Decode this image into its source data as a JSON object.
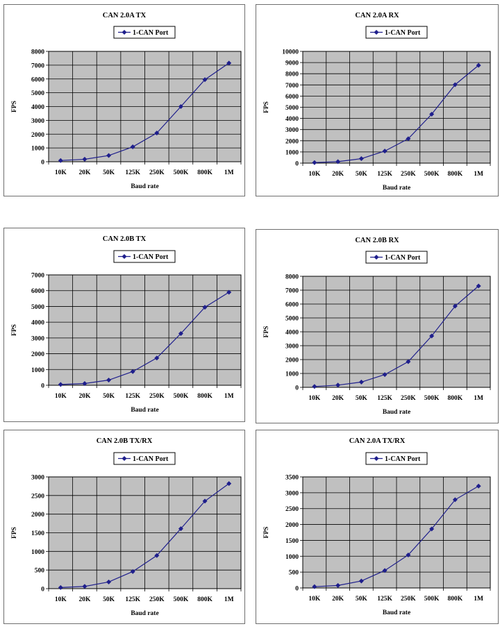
{
  "chart_data": [
    {
      "type": "line",
      "title": "CAN 2.0A TX",
      "xlabel": "Baud rate",
      "ylabel": "FPS",
      "categories": [
        "10K",
        "20K",
        "50K",
        "125K",
        "250K",
        "500K",
        "800K",
        "1M"
      ],
      "ylim": [
        0,
        8000
      ],
      "yticks": [
        0,
        1000,
        2000,
        3000,
        4000,
        5000,
        6000,
        7000,
        8000
      ],
      "grid": true,
      "legend_position": "top",
      "series": [
        {
          "name": "1-CAN Port",
          "color": "#1f1f8c",
          "values": [
            90,
            180,
            450,
            1080,
            2080,
            4000,
            5950,
            7150
          ]
        }
      ]
    },
    {
      "type": "line",
      "title": "CAN 2.0A RX",
      "xlabel": "Baud rate",
      "ylabel": "FPS",
      "categories": [
        "10K",
        "20K",
        "50K",
        "125K",
        "250K",
        "500K",
        "800K",
        "1M"
      ],
      "ylim": [
        0,
        10000
      ],
      "yticks": [
        0,
        1000,
        2000,
        3000,
        4000,
        5000,
        6000,
        7000,
        8000,
        9000,
        10000
      ],
      "grid": true,
      "legend_position": "top",
      "series": [
        {
          "name": "1-CAN Port",
          "color": "#1f1f8c",
          "values": [
            50,
            130,
            400,
            1080,
            2180,
            4380,
            7020,
            8750
          ]
        }
      ]
    },
    {
      "type": "line",
      "title": "CAN 2.0B TX",
      "xlabel": "Baud rate",
      "ylabel": "FPS",
      "categories": [
        "10K",
        "20K",
        "50K",
        "125K",
        "250K",
        "500K",
        "800K",
        "1M"
      ],
      "ylim": [
        0,
        7000
      ],
      "yticks": [
        0,
        1000,
        2000,
        3000,
        4000,
        5000,
        6000,
        7000
      ],
      "grid": true,
      "legend_position": "top",
      "series": [
        {
          "name": "1-CAN Port",
          "color": "#1f1f8c",
          "values": [
            50,
            110,
            330,
            870,
            1730,
            3280,
            4950,
            5900
          ]
        }
      ]
    },
    {
      "type": "line",
      "title": "CAN 2.0B RX",
      "xlabel": "Baud rate",
      "ylabel": "FPS",
      "categories": [
        "10K",
        "20K",
        "50K",
        "125K",
        "250K",
        "500K",
        "800K",
        "1M"
      ],
      "ylim": [
        0,
        8000
      ],
      "yticks": [
        0,
        1000,
        2000,
        3000,
        4000,
        5000,
        6000,
        7000,
        8000
      ],
      "grid": true,
      "legend_position": "top",
      "series": [
        {
          "name": "1-CAN Port",
          "color": "#1f1f8c",
          "values": [
            60,
            160,
            380,
            920,
            1850,
            3700,
            5850,
            7300
          ]
        }
      ]
    },
    {
      "type": "line",
      "title": "CAN 2.0B TX/RX",
      "xlabel": "Baud rate",
      "ylabel": "FPS",
      "categories": [
        "10K",
        "20K",
        "50K",
        "125K",
        "250K",
        "500K",
        "800K",
        "1M"
      ],
      "ylim": [
        0,
        3000
      ],
      "yticks": [
        0,
        500,
        1000,
        1500,
        2000,
        2500,
        3000
      ],
      "grid": true,
      "legend_position": "top",
      "series": [
        {
          "name": "1-CAN Port",
          "color": "#1f1f8c",
          "values": [
            30,
            60,
            180,
            460,
            890,
            1610,
            2350,
            2820
          ]
        }
      ]
    },
    {
      "type": "line",
      "title": "CAN 2.0A TX/RX",
      "xlabel": "Baud rate",
      "ylabel": "FPS",
      "categories": [
        "10K",
        "20K",
        "50K",
        "125K",
        "250K",
        "500K",
        "800K",
        "1M"
      ],
      "ylim": [
        0,
        3500
      ],
      "yticks": [
        0,
        500,
        1000,
        1500,
        2000,
        2500,
        3000,
        3500
      ],
      "grid": true,
      "legend_position": "top",
      "series": [
        {
          "name": "1-CAN Port",
          "color": "#1f1f8c",
          "values": [
            40,
            80,
            220,
            550,
            1040,
            1860,
            2780,
            3210
          ]
        }
      ]
    }
  ]
}
